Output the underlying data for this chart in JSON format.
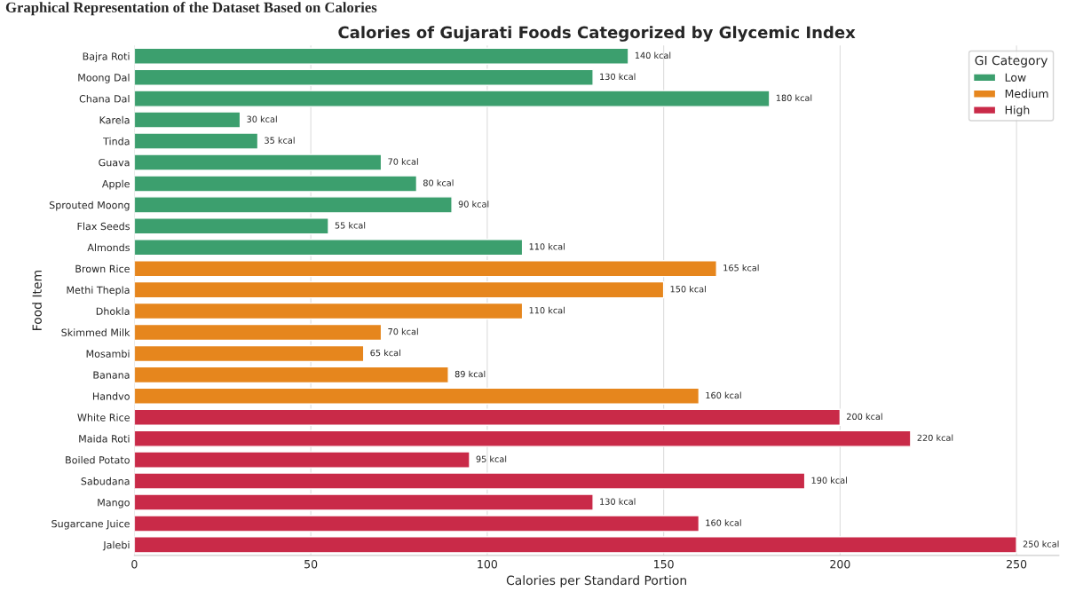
{
  "chart_data": {
    "type": "bar",
    "orientation": "horizontal",
    "title": "Calories of Gujarati Foods Categorized by Glycemic Index",
    "xlabel": "Calories per Standard Portion",
    "ylabel": "Food Item",
    "legend_title": "GI Category",
    "annotations": [
      "Graphical Representation of the Dataset Based on Calories"
    ],
    "categories": [
      "Bajra Roti",
      "Moong Dal",
      "Chana Dal",
      "Karela",
      "Tinda",
      "Guava",
      "Apple",
      "Sprouted Moong",
      "Flax Seeds",
      "Almonds",
      "Brown Rice",
      "Methi Thepla",
      "Dhokla",
      "Skimmed Milk",
      "Mosambi",
      "Banana",
      "Handvo",
      "White Rice",
      "Maida Roti",
      "Boiled Potato",
      "Sabudana",
      "Mango",
      "Sugarcane Juice",
      "Jalebi"
    ],
    "series": [
      {
        "name": "Low",
        "color": "#3c9f6e",
        "values": [
          140,
          130,
          180,
          30,
          35,
          70,
          80,
          90,
          55,
          110,
          null,
          null,
          null,
          null,
          null,
          null,
          null,
          null,
          null,
          null,
          null,
          null,
          null,
          null
        ],
        "value_labels": [
          "140 kcal",
          "130 kcal",
          "180 kcal",
          "30 kcal",
          "35 kcal",
          "70 kcal",
          "80 kcal",
          "90 kcal",
          "55 kcal",
          "110 kcal",
          null,
          null,
          null,
          null,
          null,
          null,
          null,
          null,
          null,
          null,
          null,
          null,
          null,
          null
        ]
      },
      {
        "name": "Medium",
        "color": "#e6861d",
        "values": [
          null,
          null,
          null,
          null,
          null,
          null,
          null,
          null,
          null,
          null,
          165,
          150,
          110,
          70,
          65,
          89,
          160,
          null,
          null,
          null,
          null,
          null,
          null,
          null
        ],
        "value_labels": [
          null,
          null,
          null,
          null,
          null,
          null,
          null,
          null,
          null,
          null,
          "165 kcal",
          "150 kcal",
          "110 kcal",
          "70 kcal",
          "65 kcal",
          "89 kcal",
          "160 kcal",
          null,
          null,
          null,
          null,
          null,
          null,
          null
        ]
      },
      {
        "name": "High",
        "color": "#c92a48",
        "values": [
          null,
          null,
          null,
          null,
          null,
          null,
          null,
          null,
          null,
          null,
          null,
          null,
          null,
          null,
          null,
          null,
          null,
          200,
          220,
          95,
          190,
          130,
          160,
          250
        ],
        "value_labels": [
          null,
          null,
          null,
          null,
          null,
          null,
          null,
          null,
          null,
          null,
          null,
          null,
          null,
          null,
          null,
          null,
          null,
          "200 kcal",
          "220 kcal",
          "95 kcal",
          "190 kcal",
          "130 kcal",
          "160 kcal",
          "250 kcal"
        ]
      }
    ],
    "xlim": [
      0,
      262
    ],
    "xticks": [
      0,
      50,
      100,
      150,
      200,
      250
    ],
    "grid": "x",
    "legend": "top right"
  }
}
